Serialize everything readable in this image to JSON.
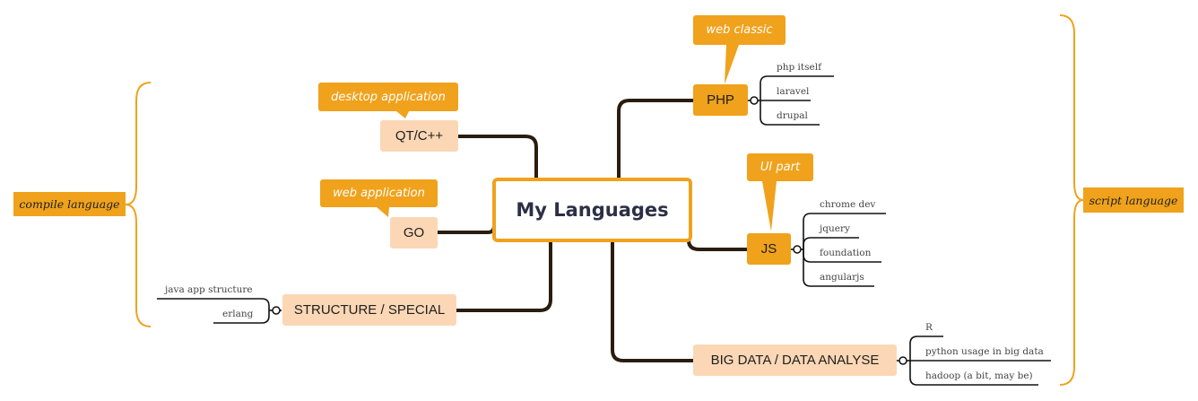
{
  "central": {
    "title": "My Languages"
  },
  "left_boundary": {
    "label": "compile language"
  },
  "right_boundary": {
    "label": "script language"
  },
  "nodes": {
    "qt": {
      "label": "QT/C++",
      "callout": "desktop application"
    },
    "go": {
      "label": "GO",
      "callout": "web application"
    },
    "structure": {
      "label": "STRUCTURE / SPECIAL",
      "children": [
        "java app structure",
        "erlang"
      ]
    },
    "php": {
      "label": "PHP",
      "callout": "web classic",
      "children": [
        "php itself",
        "laravel",
        "drupal"
      ]
    },
    "js": {
      "label": "JS",
      "callout": "UI part",
      "children": [
        "chrome dev",
        "jquery",
        "foundation",
        "angularjs"
      ]
    },
    "bigdata": {
      "label": "BIG DATA / DATA ANALYSE",
      "children": [
        "R",
        "python usage in big data",
        "hadoop (a bit, may be)"
      ]
    }
  },
  "colors": {
    "accent": "#f0a21c",
    "light": "#fbd7b5",
    "branch": "#2a1d10",
    "title": "#2c2f45"
  }
}
